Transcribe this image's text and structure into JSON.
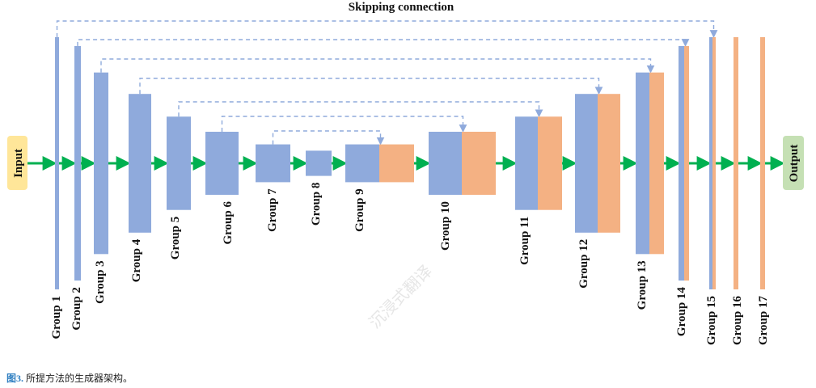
{
  "title": "Skipping connection",
  "input_label": "Input",
  "output_label": "Output",
  "caption": {
    "figure_number": "图3.",
    "text": " 所提方法的生成器架构。"
  },
  "watermark": "沉浸式翻译",
  "colors": {
    "encoder_block": "#8faadc",
    "concat_block": "#f4b183",
    "flow_arrow": "#00b050",
    "skip_line": "#8faadc",
    "input_box": "#ffe699",
    "output_box": "#c5e0b4",
    "caption_accent": "#2f7fc1"
  },
  "groups": [
    {
      "label": "Group 1",
      "type": "encoder",
      "relative_height": 1.0
    },
    {
      "label": "Group 2",
      "type": "encoder",
      "relative_height": 0.93
    },
    {
      "label": "Group 3",
      "type": "encoder",
      "relative_height": 0.72
    },
    {
      "label": "Group 4",
      "type": "encoder",
      "relative_height": 0.55
    },
    {
      "label": "Group 5",
      "type": "encoder",
      "relative_height": 0.37
    },
    {
      "label": "Group 6",
      "type": "encoder",
      "relative_height": 0.25
    },
    {
      "label": "Group 7",
      "type": "encoder",
      "relative_height": 0.15
    },
    {
      "label": "Group 8",
      "type": "encoder",
      "relative_height": 0.1
    },
    {
      "label": "Group 9",
      "type": "decoder",
      "relative_height": 0.15
    },
    {
      "label": "Group 10",
      "type": "decoder",
      "relative_height": 0.25
    },
    {
      "label": "Group 11",
      "type": "decoder",
      "relative_height": 0.37
    },
    {
      "label": "Group 12",
      "type": "decoder",
      "relative_height": 0.55
    },
    {
      "label": "Group 13",
      "type": "decoder",
      "relative_height": 0.72
    },
    {
      "label": "Group 14",
      "type": "decoder",
      "relative_height": 0.93
    },
    {
      "label": "Group 15",
      "type": "decoder",
      "relative_height": 1.0
    },
    {
      "label": "Group 16",
      "type": "output",
      "relative_height": 1.0
    },
    {
      "label": "Group 17",
      "type": "output",
      "relative_height": 1.0
    }
  ],
  "skip_connections": [
    {
      "from": "Group 1",
      "to": "Group 15"
    },
    {
      "from": "Group 2",
      "to": "Group 14"
    },
    {
      "from": "Group 3",
      "to": "Group 13"
    },
    {
      "from": "Group 4",
      "to": "Group 12"
    },
    {
      "from": "Group 5",
      "to": "Group 11"
    },
    {
      "from": "Group 6",
      "to": "Group 10"
    },
    {
      "from": "Group 7",
      "to": "Group 9"
    }
  ]
}
